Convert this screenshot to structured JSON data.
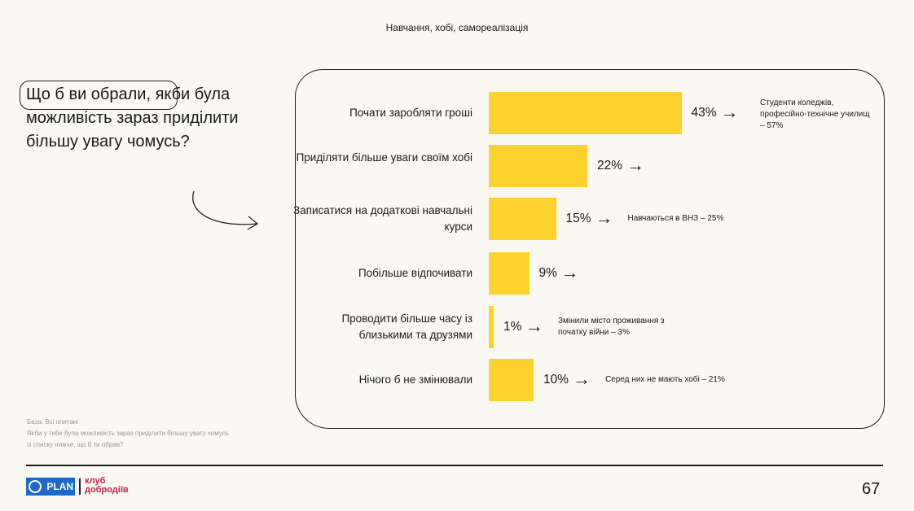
{
  "header": {
    "title": "Навчання, хобі, самореалізація"
  },
  "question": "Що б ви обрали, якби була можливість зараз приділити більшу увагу чомусь?",
  "footnote": {
    "base": "База: Всі опитані",
    "text": "Якби у тебе була можливість зараз приділити більшу увагу чомусь із списку нижче, що б ти обрав?"
  },
  "chart_data": {
    "type": "bar",
    "orientation": "horizontal",
    "categories": [
      "Почати заробляти гроші",
      "Приділяти більше уваги своїм хобі",
      "Записатися на додаткові навчальні курси",
      "Побільше відпочивати",
      "Проводити більше часу із близькими та друзями",
      "Нічого б не змінювали"
    ],
    "values": [
      43,
      22,
      15,
      9,
      1,
      10
    ],
    "value_labels": [
      "43%",
      "22%",
      "15%",
      "9%",
      "1%",
      "10%"
    ],
    "annotations": [
      "Студенти коледжів, професійно-технічне училищ – 57%",
      "",
      "Навчаються в ВНЗ – 25%",
      "",
      "Змінили місто проживання з початку війни – 3%",
      "Серед них не мають хобі – 21%"
    ],
    "bar_color": "#fdd22f"
  },
  "footer": {
    "logo_text": "PLAN",
    "club_line1": "клуб",
    "club_line2": "добродіїв",
    "page_number": "67"
  },
  "colors": {
    "brand_blue": "#1f6ac8",
    "brand_red": "#d11f45"
  }
}
